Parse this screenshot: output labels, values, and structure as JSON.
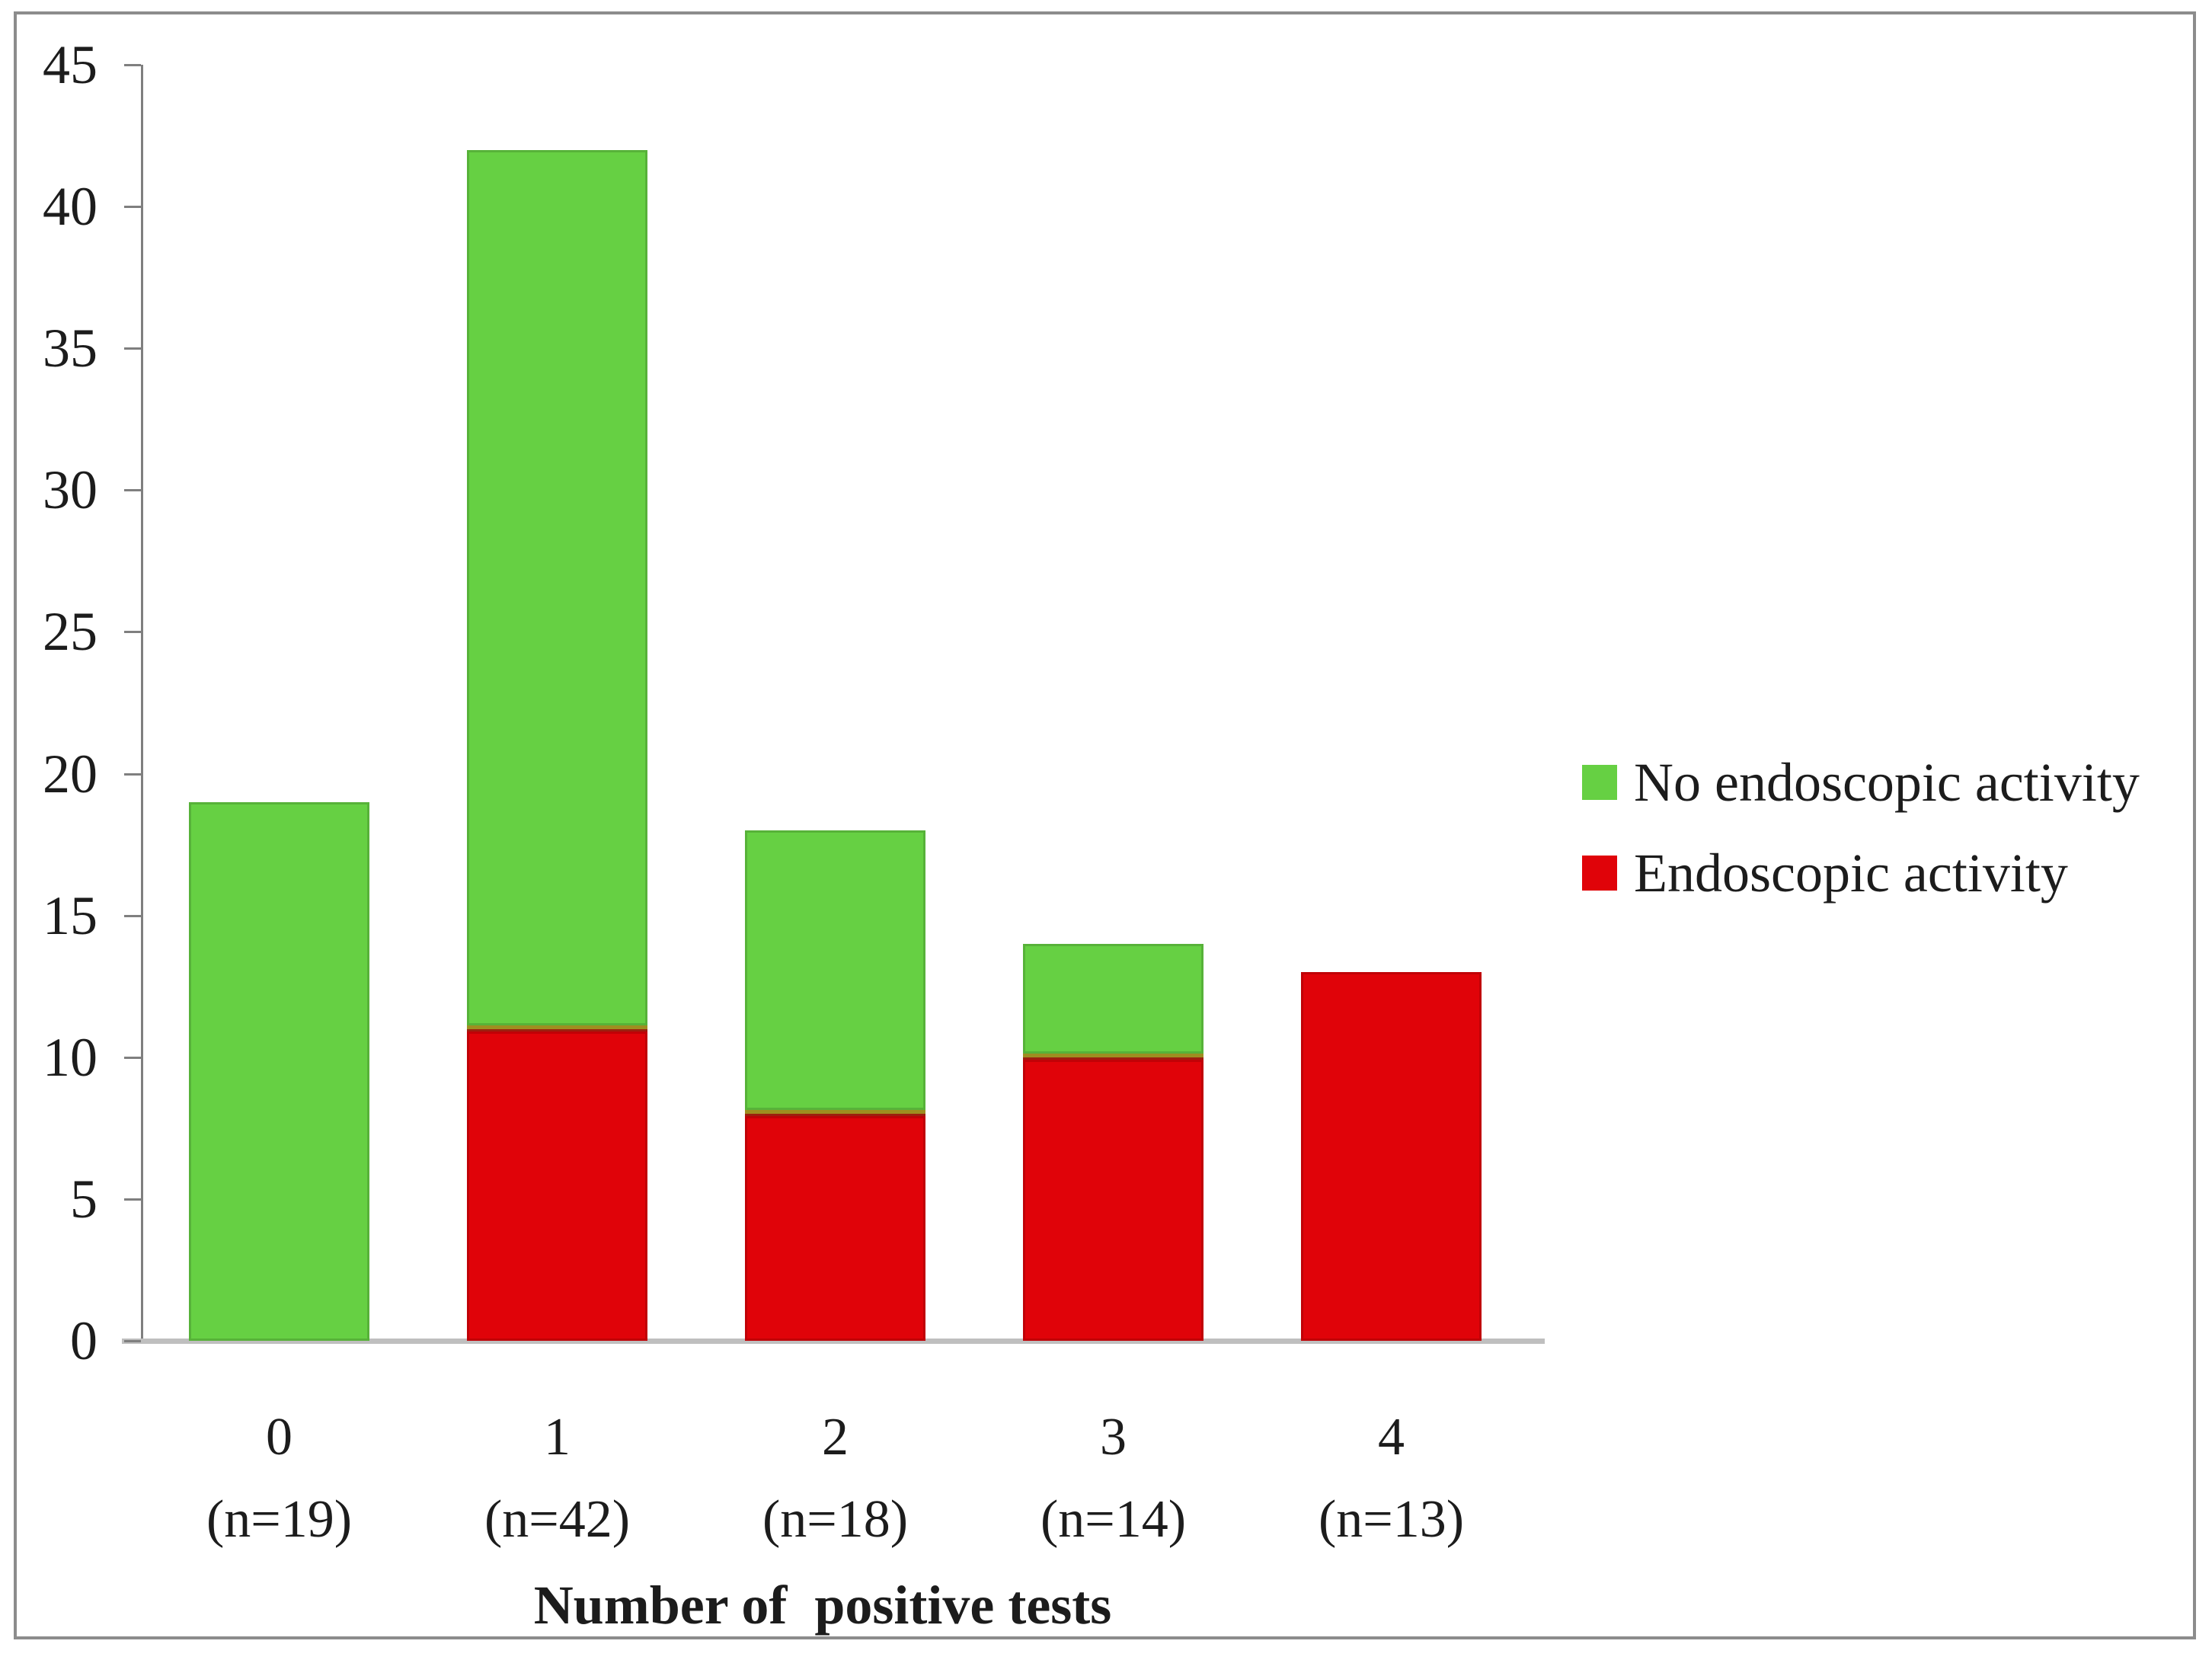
{
  "figure": {
    "background": "#ffffff",
    "border_color": "#8c8c8c",
    "text_color": "#1c1c1c"
  },
  "colors": {
    "green_series": "#66d043",
    "red_series": "#e00309",
    "junction_olive": "#9e8e20",
    "junction_brick": "#9c200f",
    "axis_line": "#7f7f7f",
    "baseline": "#bfbfbf",
    "segment_edge_shade": "rgba(0,0,0,0.14)"
  },
  "chart_data": {
    "type": "bar",
    "stacked": true,
    "title": "",
    "xlabel": "Number of  positive tests",
    "ylabel": "",
    "ylim": [
      0,
      45
    ],
    "yticks": [
      0,
      5,
      10,
      15,
      20,
      25,
      30,
      35,
      40,
      45
    ],
    "grid": false,
    "legend_position": "right",
    "categories": [
      "0",
      "1",
      "2",
      "3",
      "4"
    ],
    "category_sublabels": [
      "(n=19)",
      "(n=42)",
      "(n=18)",
      "(n=14)",
      "(n=13)"
    ],
    "totals": [
      19,
      42,
      18,
      14,
      13
    ],
    "series": [
      {
        "name": "No endoscopic activity",
        "color": "#66d043",
        "values": [
          19,
          31,
          10,
          4,
          0
        ]
      },
      {
        "name": "Endoscopic activity",
        "color": "#e00309",
        "values": [
          0,
          11,
          8,
          10,
          13
        ]
      }
    ]
  }
}
